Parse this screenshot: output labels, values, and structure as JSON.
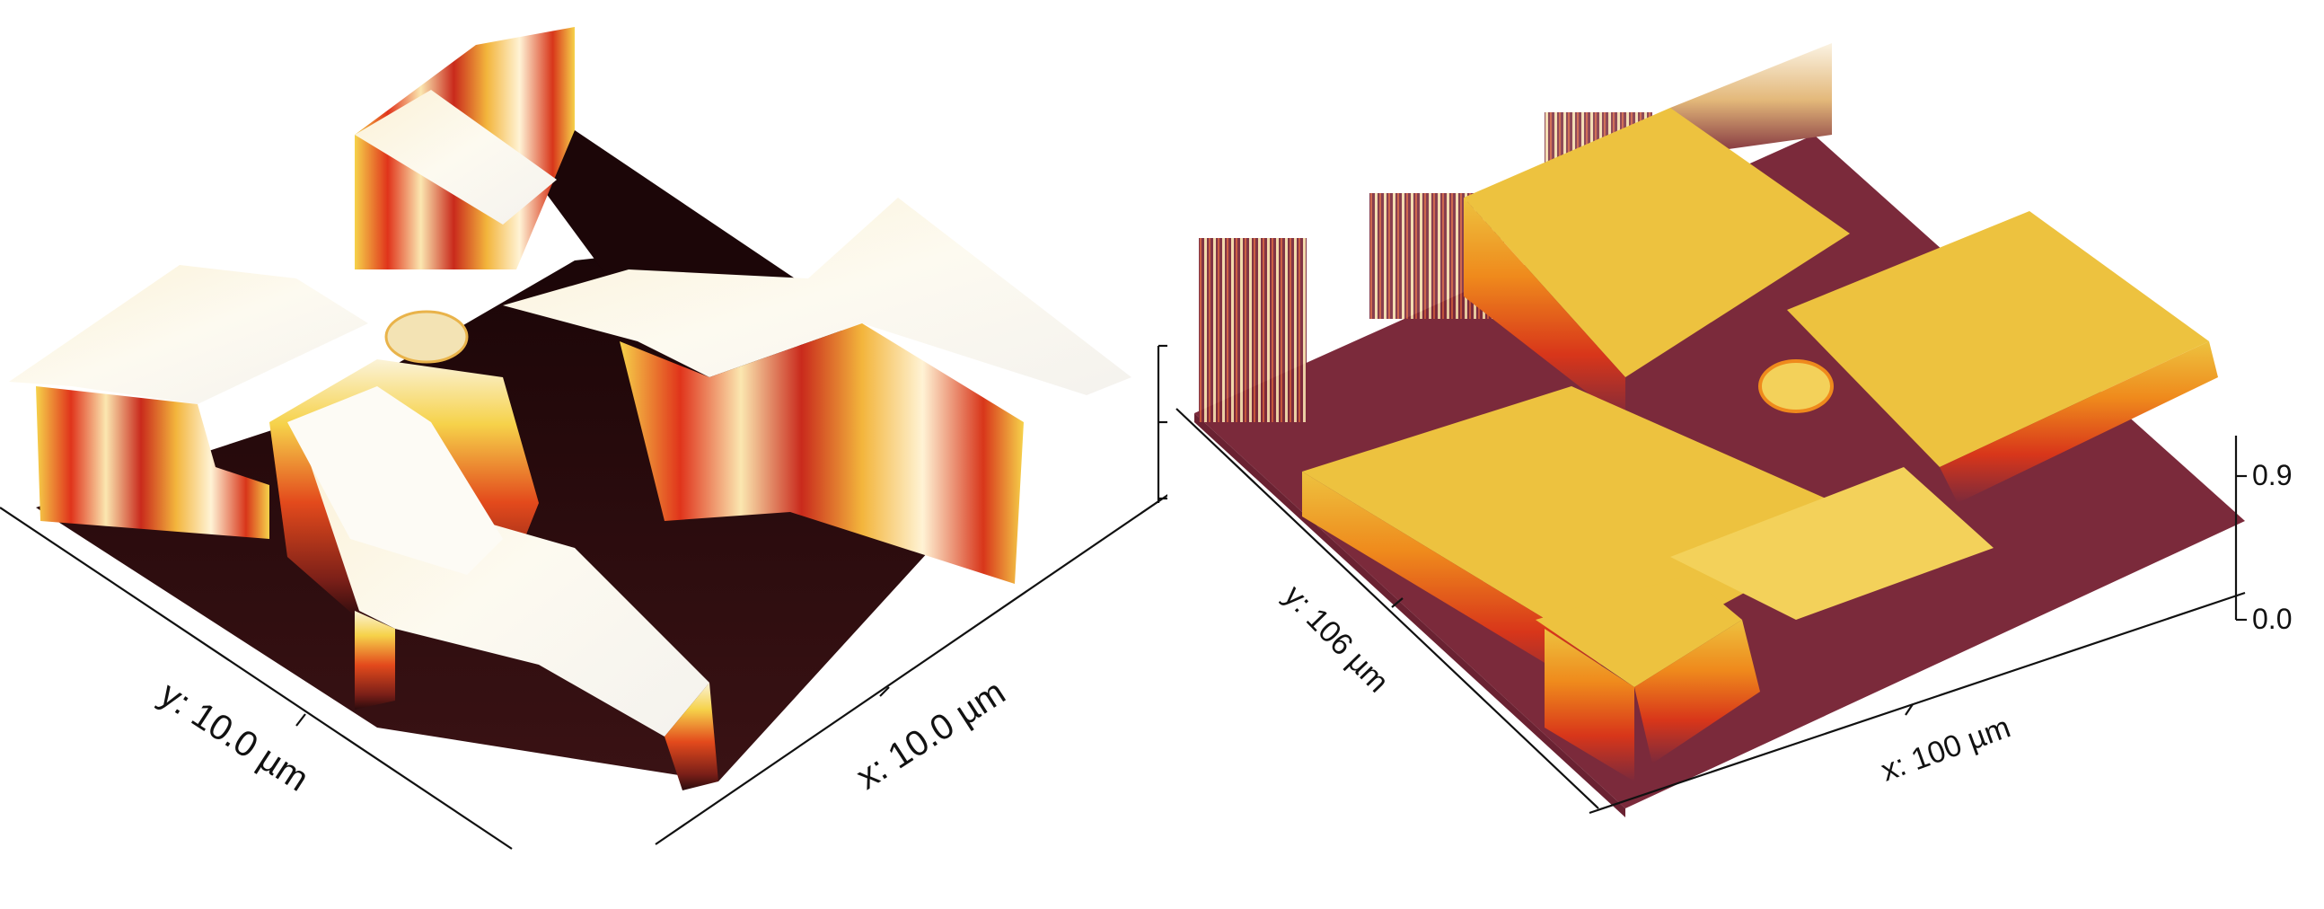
{
  "figure": {
    "left_panel": {
      "axis_y_label": "y: 10.0 µm",
      "axis_x_label": "x: 10.0 µm",
      "colors": {
        "base": "#2a0b0d",
        "low": "#4a1416",
        "mid": "#d8361a",
        "orange": "#f08a1c",
        "yellow": "#f6d24a",
        "high": "#fbf6e6",
        "white": "#f8f8f6"
      }
    },
    "right_panel": {
      "axis_y_label": "y: 106 µm",
      "axis_x_label": "x: 100 µm",
      "z_ticks": [
        "0.9",
        "0.0"
      ],
      "colors": {
        "base": "#7b2a3b",
        "mid": "#d8361a",
        "orange": "#ef8a1c",
        "top": "#edc23f",
        "top_light": "#f3d15a"
      }
    }
  }
}
